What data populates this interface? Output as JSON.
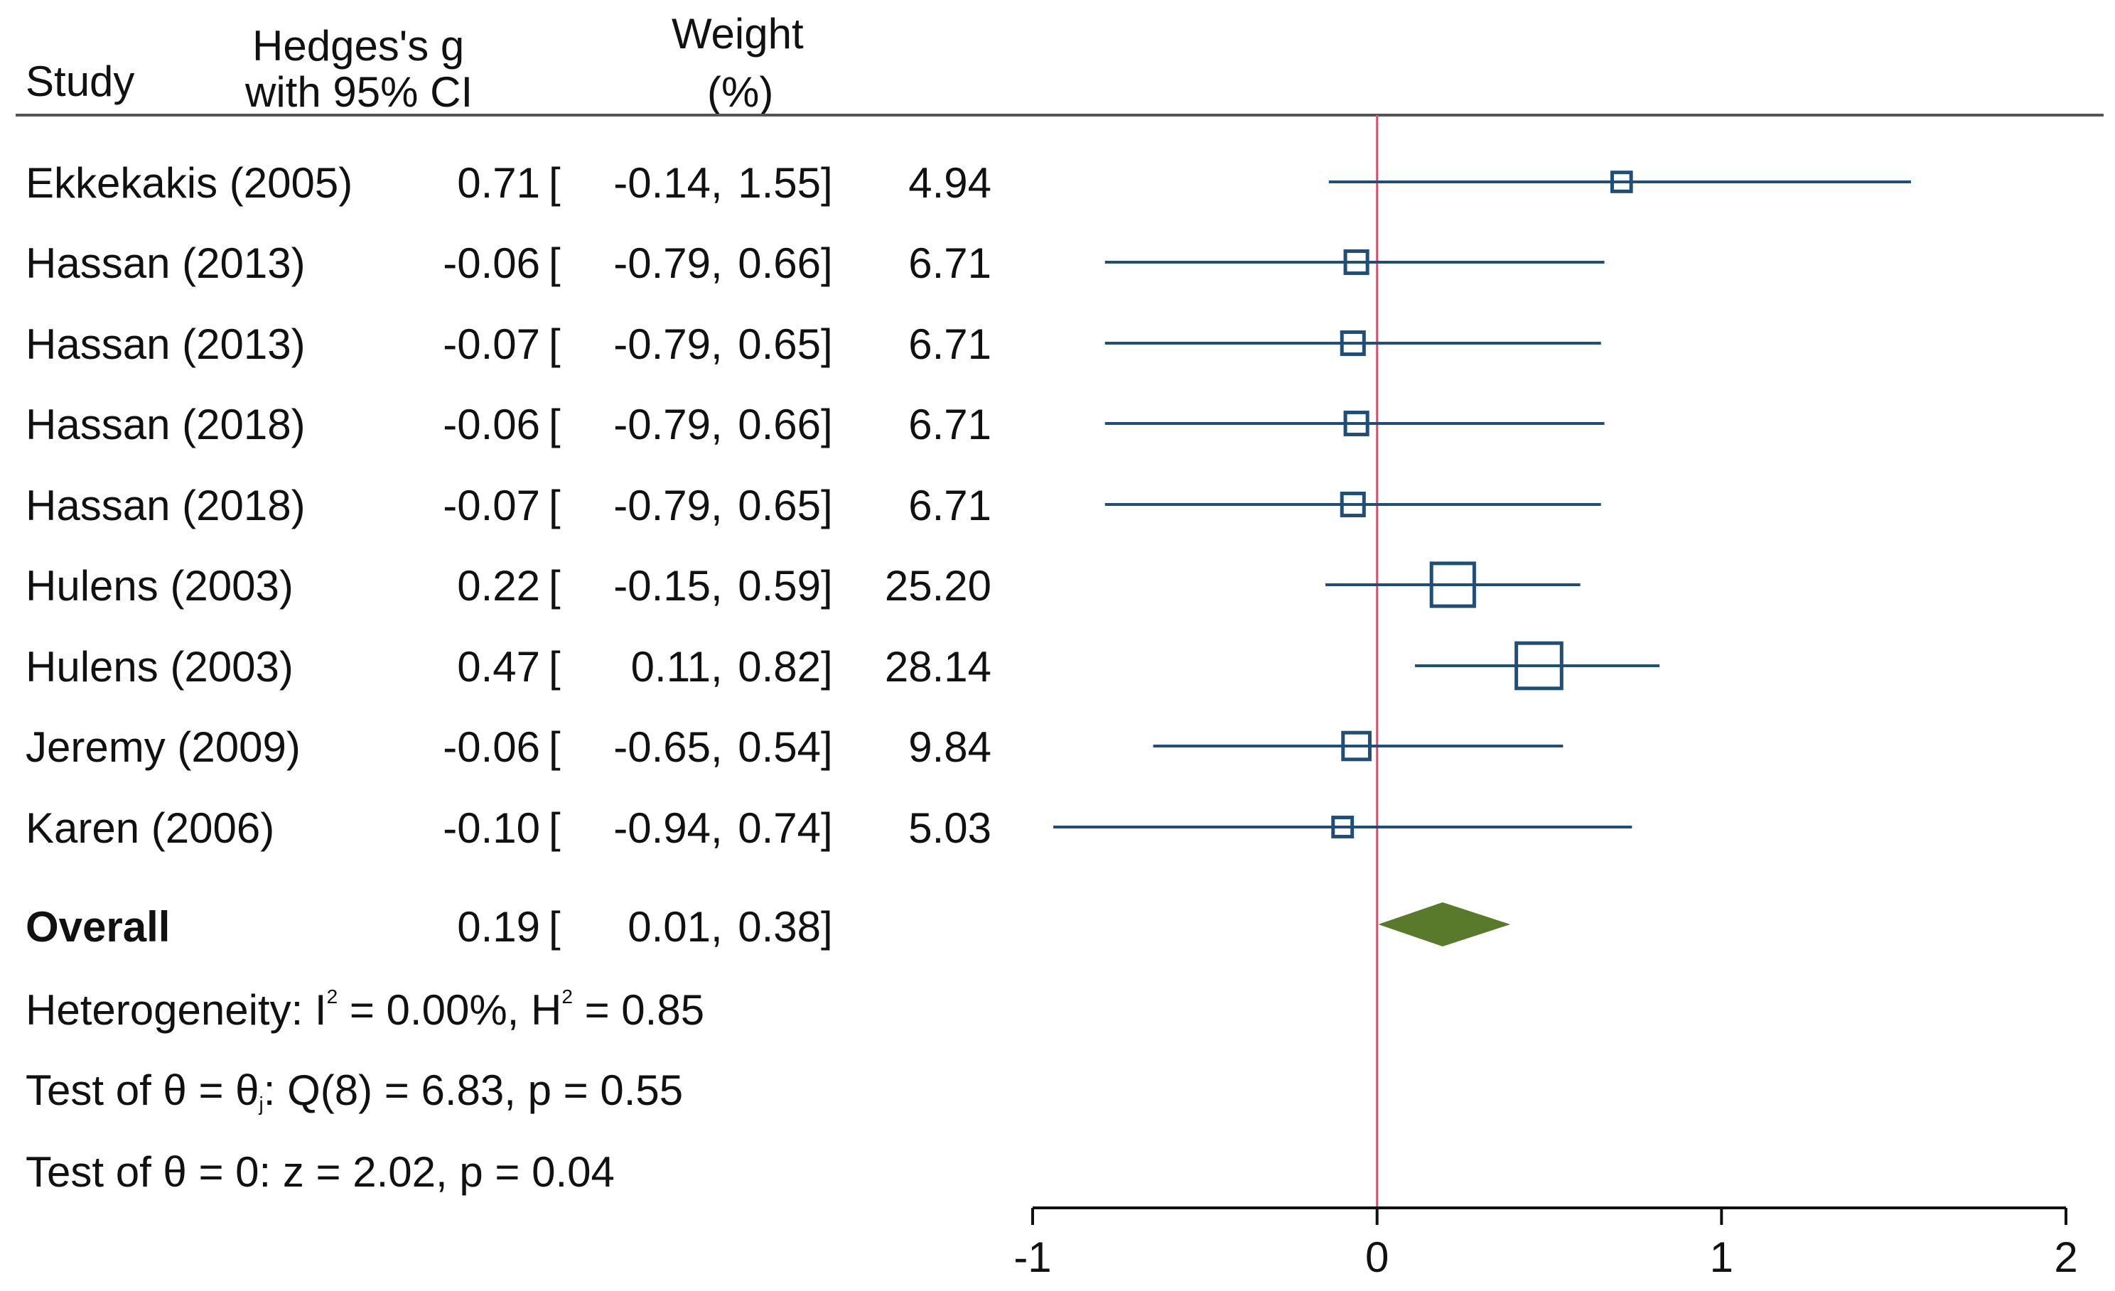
{
  "header": {
    "study": "Study",
    "effect_line1": "Hedges's g",
    "effect_line2": "with 95% CI",
    "weight_line1": "Weight",
    "weight_line2": "(%)"
  },
  "rows": [
    {
      "study": "Ekkekakis (2005)",
      "g": "0.71",
      "lo": "-0.14",
      "hi": "1.55",
      "weight": "4.94"
    },
    {
      "study": "Hassan (2013)",
      "g": "-0.06",
      "lo": "-0.79",
      "hi": "0.66",
      "weight": "6.71"
    },
    {
      "study": "Hassan (2013)",
      "g": "-0.07",
      "lo": "-0.79",
      "hi": "0.65",
      "weight": "6.71"
    },
    {
      "study": "Hassan (2018)",
      "g": "-0.06",
      "lo": "-0.79",
      "hi": "0.66",
      "weight": "6.71"
    },
    {
      "study": "Hassan (2018)",
      "g": "-0.07",
      "lo": "-0.79",
      "hi": "0.65",
      "weight": "6.71"
    },
    {
      "study": "Hulens (2003)",
      "g": "0.22",
      "lo": "-0.15",
      "hi": "0.59",
      "weight": "25.20"
    },
    {
      "study": "Hulens (2003)",
      "g": "0.47",
      "lo": "0.11",
      "hi": "0.82",
      "weight": "28.14"
    },
    {
      "study": "Jeremy (2009)",
      "g": "-0.06",
      "lo": "-0.65",
      "hi": "0.54",
      "weight": "9.84"
    },
    {
      "study": "Karen (2006)",
      "g": "-0.10",
      "lo": "-0.94",
      "hi": "0.74",
      "weight": "5.03"
    }
  ],
  "overall": {
    "label": "Overall",
    "g": "0.19",
    "lo": "0.01",
    "hi": "0.38"
  },
  "stats": {
    "heterogeneity_prefix": "Heterogeneity: I",
    "i2_sup": "2",
    "i2_value": " = 0.00%, H",
    "h2_sup": "2",
    "h2_value": " = 0.85",
    "test_theta_prefix": "Test of θ = θ",
    "test_theta_sub": "j",
    "test_theta_rest": ": Q(8) = 6.83, p = 0.55",
    "test_zero": "Test of θ = 0: z = 2.02, p = 0.04"
  },
  "colors": {
    "study_marker": "#1f4e79",
    "overall_diamond": "#5a7a2b",
    "null_line": "#d9536d",
    "axis": "#111111",
    "header_rule": "#555555"
  },
  "chart_data": {
    "type": "forest",
    "title": "",
    "xlabel": "",
    "xlim": [
      -1,
      2
    ],
    "x_ticks": [
      -1,
      0,
      1,
      2
    ],
    "x_tick_labels": [
      "-1",
      "0",
      "1",
      "2"
    ],
    "null_value": 0,
    "series": [
      {
        "name": "Ekkekakis (2005)",
        "estimate": 0.71,
        "ci": [
          -0.14,
          1.55
        ],
        "weight": 4.94
      },
      {
        "name": "Hassan (2013)",
        "estimate": -0.06,
        "ci": [
          -0.79,
          0.66
        ],
        "weight": 6.71
      },
      {
        "name": "Hassan (2013)",
        "estimate": -0.07,
        "ci": [
          -0.79,
          0.65
        ],
        "weight": 6.71
      },
      {
        "name": "Hassan (2018)",
        "estimate": -0.06,
        "ci": [
          -0.79,
          0.66
        ],
        "weight": 6.71
      },
      {
        "name": "Hassan (2018)",
        "estimate": -0.07,
        "ci": [
          -0.79,
          0.65
        ],
        "weight": 6.71
      },
      {
        "name": "Hulens (2003)",
        "estimate": 0.22,
        "ci": [
          -0.15,
          0.59
        ],
        "weight": 25.2
      },
      {
        "name": "Hulens (2003)",
        "estimate": 0.47,
        "ci": [
          0.11,
          0.82
        ],
        "weight": 28.14
      },
      {
        "name": "Jeremy (2009)",
        "estimate": -0.06,
        "ci": [
          -0.65,
          0.54
        ],
        "weight": 9.84
      },
      {
        "name": "Karen (2006)",
        "estimate": -0.1,
        "ci": [
          -0.94,
          0.74
        ],
        "weight": 5.03
      }
    ],
    "overall": {
      "name": "Overall",
      "estimate": 0.19,
      "ci": [
        0.01,
        0.38
      ]
    }
  }
}
